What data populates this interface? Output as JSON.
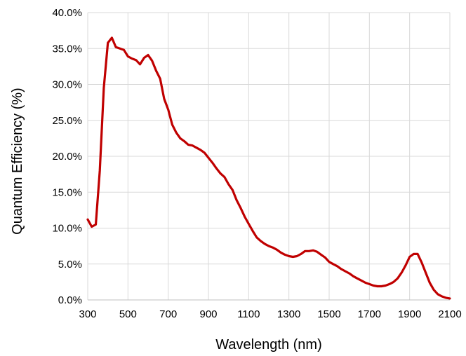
{
  "chart_data": {
    "type": "line",
    "title": "",
    "xlabel": "Wavelength (nm)",
    "ylabel": "Quantum Efficiency (%)",
    "xlim": [
      300,
      2100
    ],
    "ylim": [
      0,
      0.4
    ],
    "x_ticks": [
      300,
      500,
      700,
      900,
      1100,
      1300,
      1500,
      1700,
      1900,
      2100
    ],
    "y_ticks": [
      0,
      0.05,
      0.1,
      0.15,
      0.2,
      0.25,
      0.3,
      0.35,
      0.4
    ],
    "x_tick_labels": [
      "300",
      "500",
      "700",
      "900",
      "1100",
      "1300",
      "1500",
      "1700",
      "1900",
      "2100"
    ],
    "y_tick_labels": [
      "0.0%",
      "5.0%",
      "10.0%",
      "15.0%",
      "20.0%",
      "25.0%",
      "30.0%",
      "35.0%",
      "40.0%"
    ],
    "grid": "horizontal",
    "legend": "none",
    "series": [
      {
        "color": "#c00000",
        "x": [
          300,
          320,
          340,
          360,
          380,
          400,
          420,
          440,
          460,
          480,
          500,
          520,
          540,
          560,
          580,
          600,
          620,
          640,
          660,
          680,
          700,
          720,
          740,
          760,
          780,
          800,
          820,
          840,
          860,
          880,
          900,
          920,
          940,
          960,
          980,
          1000,
          1020,
          1040,
          1060,
          1080,
          1100,
          1120,
          1140,
          1160,
          1180,
          1200,
          1220,
          1240,
          1260,
          1280,
          1300,
          1320,
          1340,
          1360,
          1380,
          1400,
          1420,
          1440,
          1460,
          1480,
          1500,
          1520,
          1540,
          1560,
          1580,
          1600,
          1620,
          1640,
          1660,
          1680,
          1700,
          1720,
          1740,
          1760,
          1780,
          1800,
          1820,
          1840,
          1860,
          1880,
          1900,
          1920,
          1940,
          1960,
          1980,
          2000,
          2020,
          2040,
          2060,
          2080,
          2100
        ],
        "y": [
          0.112,
          0.102,
          0.105,
          0.18,
          0.295,
          0.358,
          0.365,
          0.352,
          0.35,
          0.348,
          0.339,
          0.336,
          0.334,
          0.328,
          0.337,
          0.341,
          0.333,
          0.319,
          0.308,
          0.28,
          0.265,
          0.244,
          0.233,
          0.225,
          0.221,
          0.216,
          0.215,
          0.212,
          0.209,
          0.205,
          0.198,
          0.191,
          0.183,
          0.176,
          0.171,
          0.161,
          0.153,
          0.139,
          0.128,
          0.116,
          0.106,
          0.096,
          0.087,
          0.082,
          0.078,
          0.075,
          0.073,
          0.07,
          0.066,
          0.063,
          0.061,
          0.06,
          0.061,
          0.064,
          0.068,
          0.068,
          0.069,
          0.067,
          0.063,
          0.059,
          0.053,
          0.05,
          0.047,
          0.043,
          0.04,
          0.037,
          0.033,
          0.03,
          0.027,
          0.024,
          0.022,
          0.02,
          0.019,
          0.019,
          0.02,
          0.022,
          0.025,
          0.03,
          0.038,
          0.048,
          0.06,
          0.064,
          0.064,
          0.052,
          0.038,
          0.024,
          0.014,
          0.008,
          0.005,
          0.003,
          0.002
        ]
      }
    ]
  }
}
